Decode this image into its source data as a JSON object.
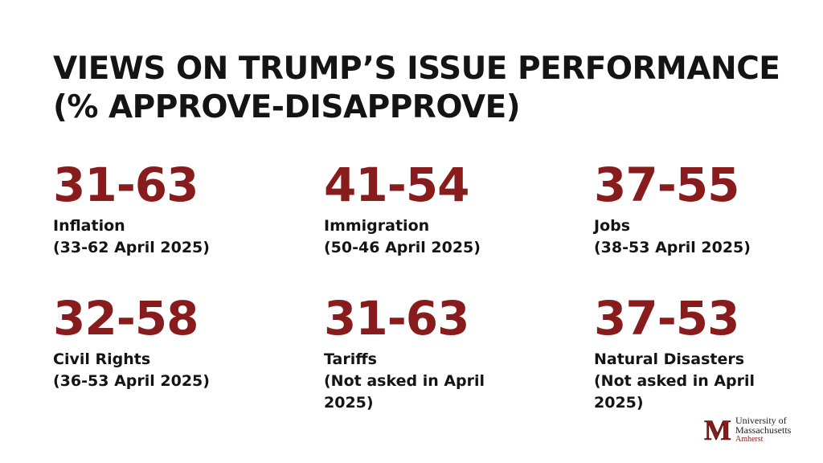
{
  "title": {
    "line1": "VIEWS ON TRUMP’S ISSUE PERFORMANCE",
    "line2": "(% APPROVE-DISAPPROVE)"
  },
  "stats": [
    {
      "value": "31-63",
      "label": "Inflation",
      "note": "(33-62 April 2025)"
    },
    {
      "value": "41-54",
      "label": "Immigration",
      "note": "(50-46 April 2025)"
    },
    {
      "value": "37-55",
      "label": "Jobs",
      "note": "(38-53 April 2025)"
    },
    {
      "value": "32-58",
      "label": "Civil Rights",
      "note": "(36-53 April 2025)"
    },
    {
      "value": "31-63",
      "label": "Tariffs",
      "note": "(Not asked in April\n2025)"
    },
    {
      "value": "37-53",
      "label": "Natural Disasters",
      "note": "(Not asked in April\n2025)"
    }
  ],
  "logo": {
    "letter": "M",
    "line1": "University of",
    "line2": "Massachusetts",
    "line3": "Amherst"
  },
  "colors": {
    "accent": "#881c1c",
    "text": "#141414",
    "background": "#ffffff"
  }
}
